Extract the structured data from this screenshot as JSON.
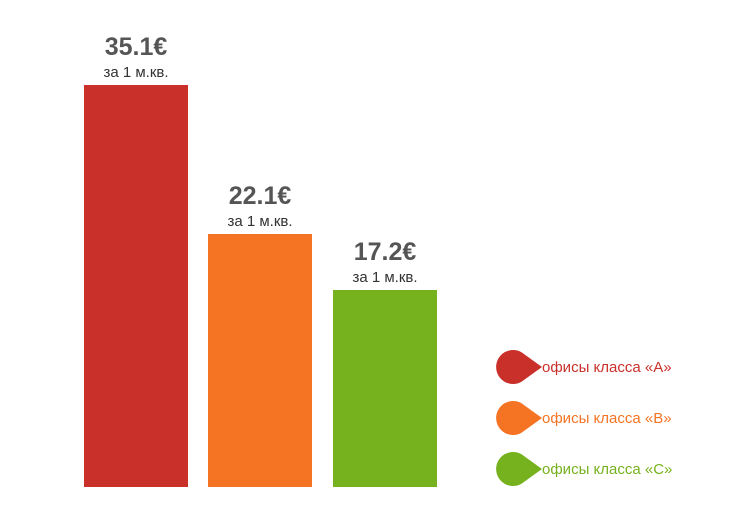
{
  "chart_data": {
    "type": "bar",
    "categories": [
      "офисы класса «A»",
      "офисы класса «B»",
      "офисы класса «C»"
    ],
    "values": [
      35.1,
      22.1,
      17.2
    ],
    "value_labels": [
      "35.1€",
      "22.1€",
      "17.2€"
    ],
    "unit_label": "за 1 м.кв.",
    "colors": [
      "#c9302a",
      "#f47424",
      "#76b21d"
    ],
    "ylim": [
      0,
      35.1
    ],
    "grid": false,
    "legend_position": "right"
  }
}
